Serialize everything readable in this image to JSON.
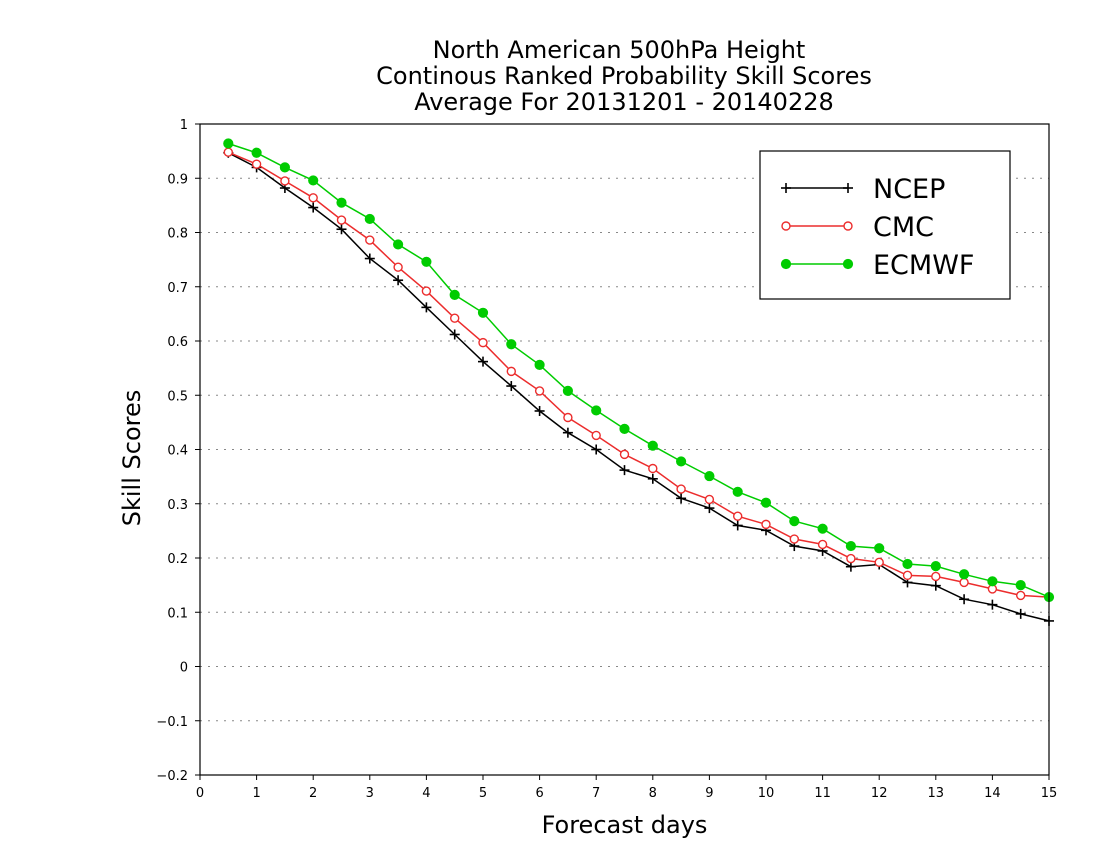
{
  "chart_data": {
    "type": "line",
    "title": [
      "North American 500hPa Height",
      "Continous Ranked Probability Skill Scores",
      "Average For 20131201 - 20140228"
    ],
    "xlabel": "Forecast days",
    "ylabel": "Skill Scores",
    "xlim": [
      0,
      15
    ],
    "ylim": [
      -0.2,
      1
    ],
    "xticks": [
      0,
      1,
      2,
      3,
      4,
      5,
      6,
      7,
      8,
      9,
      10,
      11,
      12,
      13,
      14,
      15
    ],
    "xtick_labels": [
      "0",
      "1",
      "2",
      "3",
      "4",
      "5",
      "6",
      "7",
      "8",
      "9",
      "10",
      "11",
      "12",
      "13",
      "14",
      "15"
    ],
    "yticks": [
      -0.2,
      -0.1,
      0,
      0.1,
      0.2,
      0.3,
      0.4,
      0.5,
      0.6,
      0.7,
      0.8,
      0.9,
      1
    ],
    "ytick_labels": [
      "−0.2",
      "−0.1",
      "0",
      "0.1",
      "0.2",
      "0.3",
      "0.4",
      "0.5",
      "0.6",
      "0.7",
      "0.8",
      "0.9",
      "1"
    ],
    "grid": "horizontal dotted",
    "legend_position": "top-right",
    "x": [
      0.5,
      1,
      1.5,
      2,
      2.5,
      3,
      3.5,
      4,
      4.5,
      5,
      5.5,
      6,
      6.5,
      7,
      7.5,
      8,
      8.5,
      9,
      9.5,
      10,
      10.5,
      11,
      11.5,
      12,
      12.5,
      13,
      13.5,
      14,
      14.5,
      15
    ],
    "series": [
      {
        "name": "NCEP",
        "color": "#000000",
        "marker": "plus",
        "values": [
          0.947,
          0.92,
          0.882,
          0.846,
          0.806,
          0.752,
          0.712,
          0.662,
          0.612,
          0.562,
          0.517,
          0.471,
          0.431,
          0.4,
          0.362,
          0.346,
          0.31,
          0.292,
          0.26,
          0.251,
          0.222,
          0.213,
          0.184,
          0.188,
          0.155,
          0.149,
          0.124,
          0.114,
          0.097,
          0.084
        ]
      },
      {
        "name": "CMC",
        "color": "#ec2d2d",
        "marker": "open-circle",
        "values": [
          0.948,
          0.926,
          0.895,
          0.864,
          0.823,
          0.786,
          0.736,
          0.692,
          0.642,
          0.597,
          0.544,
          0.508,
          0.459,
          0.426,
          0.391,
          0.365,
          0.327,
          0.308,
          0.277,
          0.262,
          0.235,
          0.225,
          0.199,
          0.192,
          0.168,
          0.166,
          0.155,
          0.143,
          0.131,
          0.128
        ]
      },
      {
        "name": "ECMWF",
        "color": "#00cc00",
        "marker": "filled-circle",
        "values": [
          0.964,
          0.947,
          0.92,
          0.896,
          0.855,
          0.825,
          0.778,
          0.746,
          0.685,
          0.652,
          0.594,
          0.556,
          0.508,
          0.472,
          0.438,
          0.407,
          0.378,
          0.351,
          0.322,
          0.302,
          0.268,
          0.254,
          0.222,
          0.218,
          0.189,
          0.185,
          0.17,
          0.157,
          0.15,
          0.128
        ]
      }
    ]
  }
}
